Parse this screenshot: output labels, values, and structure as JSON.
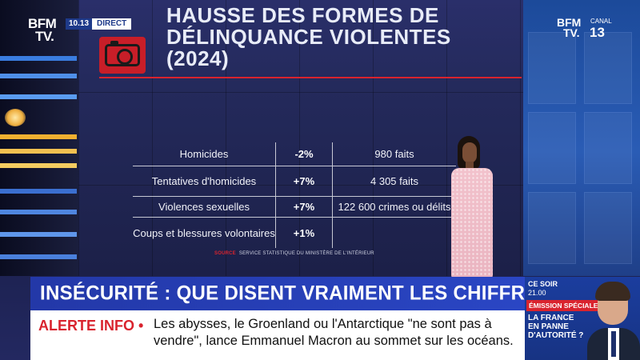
{
  "header": {
    "channel_logo_top": "BFM",
    "channel_logo_bottom": "TV.",
    "time": "10.13",
    "live_label": "DIRECT",
    "canal_label": "CANAL",
    "canal_number": "13"
  },
  "screen": {
    "title_lines": [
      "HAUSSE DES FORMES DE",
      "DÉLINQUANCE VIOLENTES",
      "(2024)"
    ],
    "source_label": "SOURCE",
    "source_text": "SERVICE STATISTIQUE DU MINISTÈRE DE L'INTÉRIEUR",
    "rows": [
      {
        "category": "Homicides",
        "change": "-2%",
        "value": "980 faits"
      },
      {
        "category": "Tentatives d'homicides",
        "change": "+7%",
        "value": "4 305 faits"
      },
      {
        "category": "Violences sexuelles",
        "change": "+7%",
        "value": "122 600 crimes ou délits"
      },
      {
        "category": "Coups et blessures volontaires",
        "change": "+1%",
        "value": ""
      }
    ]
  },
  "banner": {
    "headline": "INSÉCURITÉ : QUE DISENT VRAIMENT LES CHIFFRES ?",
    "alert_label": "ALERTE INFO •",
    "alert_text": "Les abysses, le Groenland ou l'Antarctique \"ne sont pas à vendre\", lance Emmanuel Macron au sommet sur les océans."
  },
  "promo": {
    "ce_soir": "CE SOIR",
    "hour": "21.00",
    "special_label": "ÉMISSION SPÉCIALE",
    "show_title": "LA FRANCE EN PANNE D'AUTORITÉ ?"
  },
  "colors": {
    "accent_red": "#d9232e",
    "brand_blue": "#2338a8"
  },
  "icons": [
    "camera-icon"
  ]
}
